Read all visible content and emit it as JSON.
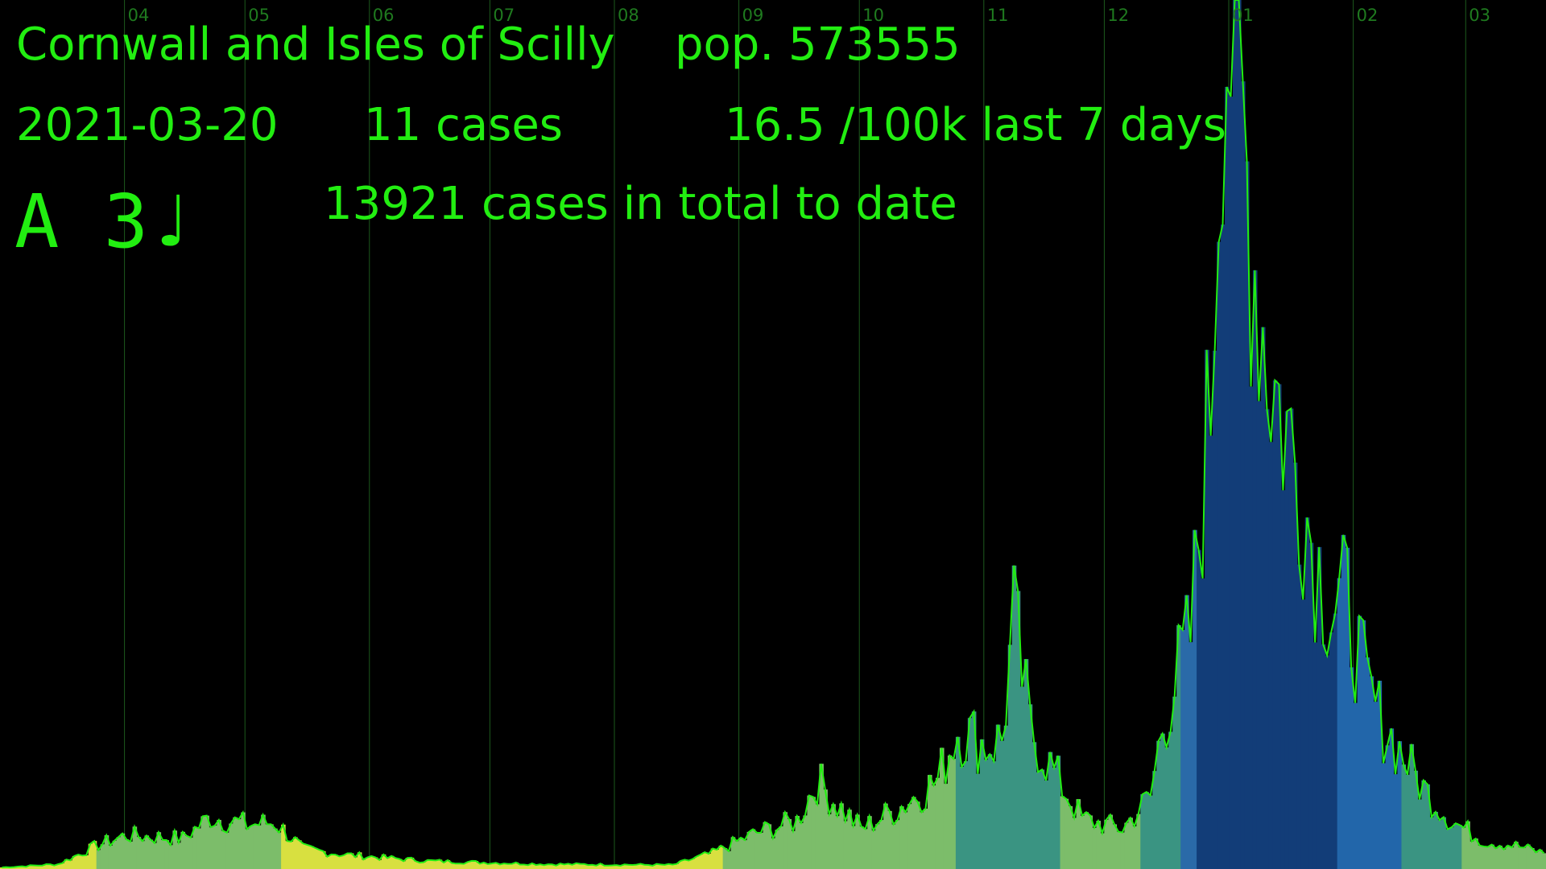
{
  "header": {
    "region": "Cornwall and Isles of Scilly",
    "population": "pop. 573555",
    "date": "2021-03-20",
    "cases_today": "11 cases",
    "rate": "16.5 /100k last 7 days",
    "indicator": "A 3♩",
    "total": "13921 cases in total to date"
  },
  "chart_data": {
    "type": "bar",
    "x_unit": "date",
    "x_start": "2020-03-01",
    "x_end": "2021-03-20",
    "ylim": [
      0,
      1080
    ],
    "grid": "vertical month lines",
    "month_ticks": [
      {
        "label": "04",
        "date": "2020-04-01"
      },
      {
        "label": "05",
        "date": "2020-05-01"
      },
      {
        "label": "06",
        "date": "2020-06-01"
      },
      {
        "label": "07",
        "date": "2020-07-01"
      },
      {
        "label": "08",
        "date": "2020-08-01"
      },
      {
        "label": "09",
        "date": "2020-09-01"
      },
      {
        "label": "10",
        "date": "2020-10-01"
      },
      {
        "label": "11",
        "date": "2020-11-01"
      },
      {
        "label": "12",
        "date": "2020-12-01"
      },
      {
        "label": "01",
        "date": "2021-01-01"
      },
      {
        "label": "02",
        "date": "2021-02-01"
      },
      {
        "label": "03",
        "date": "2021-03-01"
      }
    ],
    "color_bands": [
      {
        "from": "2020-03-01",
        "to": "2020-03-25",
        "color": "#d8e040"
      },
      {
        "from": "2020-03-25",
        "to": "2020-05-10",
        "color": "#7cbd6a"
      },
      {
        "from": "2020-05-10",
        "to": "2020-08-28",
        "color": "#d8e040"
      },
      {
        "from": "2020-08-28",
        "to": "2020-10-25",
        "color": "#7cbd6a"
      },
      {
        "from": "2020-10-25",
        "to": "2020-11-20",
        "color": "#3a9482"
      },
      {
        "from": "2020-11-20",
        "to": "2020-12-10",
        "color": "#7cbd6a"
      },
      {
        "from": "2020-12-10",
        "to": "2020-12-20",
        "color": "#3a9482"
      },
      {
        "from": "2020-12-20",
        "to": "2020-12-24",
        "color": "#2a6aa8"
      },
      {
        "from": "2020-12-24",
        "to": "2021-01-28",
        "color": "#123d78"
      },
      {
        "from": "2021-01-28",
        "to": "2021-02-13",
        "color": "#2266aa"
      },
      {
        "from": "2021-02-13",
        "to": "2021-02-28",
        "color": "#3a9482"
      },
      {
        "from": "2021-02-28",
        "to": "2021-03-20",
        "color": "#7cbd6a"
      }
    ],
    "key_points": [
      [
        "2020-03-01",
        2
      ],
      [
        "2020-03-15",
        6
      ],
      [
        "2020-03-25",
        30
      ],
      [
        "2020-04-01",
        42
      ],
      [
        "2020-04-15",
        38
      ],
      [
        "2020-04-22",
        65
      ],
      [
        "2020-05-01",
        55
      ],
      [
        "2020-05-08",
        58
      ],
      [
        "2020-05-15",
        25
      ],
      [
        "2020-05-25",
        18
      ],
      [
        "2020-06-15",
        10
      ],
      [
        "2020-07-15",
        6
      ],
      [
        "2020-08-15",
        5
      ],
      [
        "2020-08-25",
        20
      ],
      [
        "2020-09-05",
        45
      ],
      [
        "2020-09-15",
        60
      ],
      [
        "2020-09-20",
        110
      ],
      [
        "2020-09-25",
        80
      ],
      [
        "2020-10-01",
        50
      ],
      [
        "2020-10-10",
        75
      ],
      [
        "2020-10-20",
        110
      ],
      [
        "2020-10-25",
        175
      ],
      [
        "2020-11-01",
        155
      ],
      [
        "2020-11-05",
        160
      ],
      [
        "2020-11-08",
        310
      ],
      [
        "2020-11-12",
        175
      ],
      [
        "2020-11-18",
        120
      ],
      [
        "2020-11-25",
        62
      ],
      [
        "2020-12-05",
        50
      ],
      [
        "2020-12-12",
        90
      ],
      [
        "2020-12-15",
        180
      ],
      [
        "2020-12-18",
        230
      ],
      [
        "2020-12-22",
        290
      ],
      [
        "2020-12-27",
        590
      ],
      [
        "2020-12-30",
        1070
      ],
      [
        "2021-01-02",
        1040
      ],
      [
        "2021-01-06",
        800
      ],
      [
        "2021-01-10",
        640
      ],
      [
        "2021-01-14",
        560
      ],
      [
        "2021-01-18",
        490
      ],
      [
        "2021-01-22",
        390
      ],
      [
        "2021-01-26",
        330
      ],
      [
        "2021-01-30",
        330
      ],
      [
        "2021-02-04",
        220
      ],
      [
        "2021-02-08",
        180
      ],
      [
        "2021-02-13",
        140
      ],
      [
        "2021-02-18",
        100
      ],
      [
        "2021-02-25",
        60
      ],
      [
        "2021-03-05",
        35
      ],
      [
        "2021-03-12",
        30
      ],
      [
        "2021-03-20",
        20
      ]
    ]
  }
}
